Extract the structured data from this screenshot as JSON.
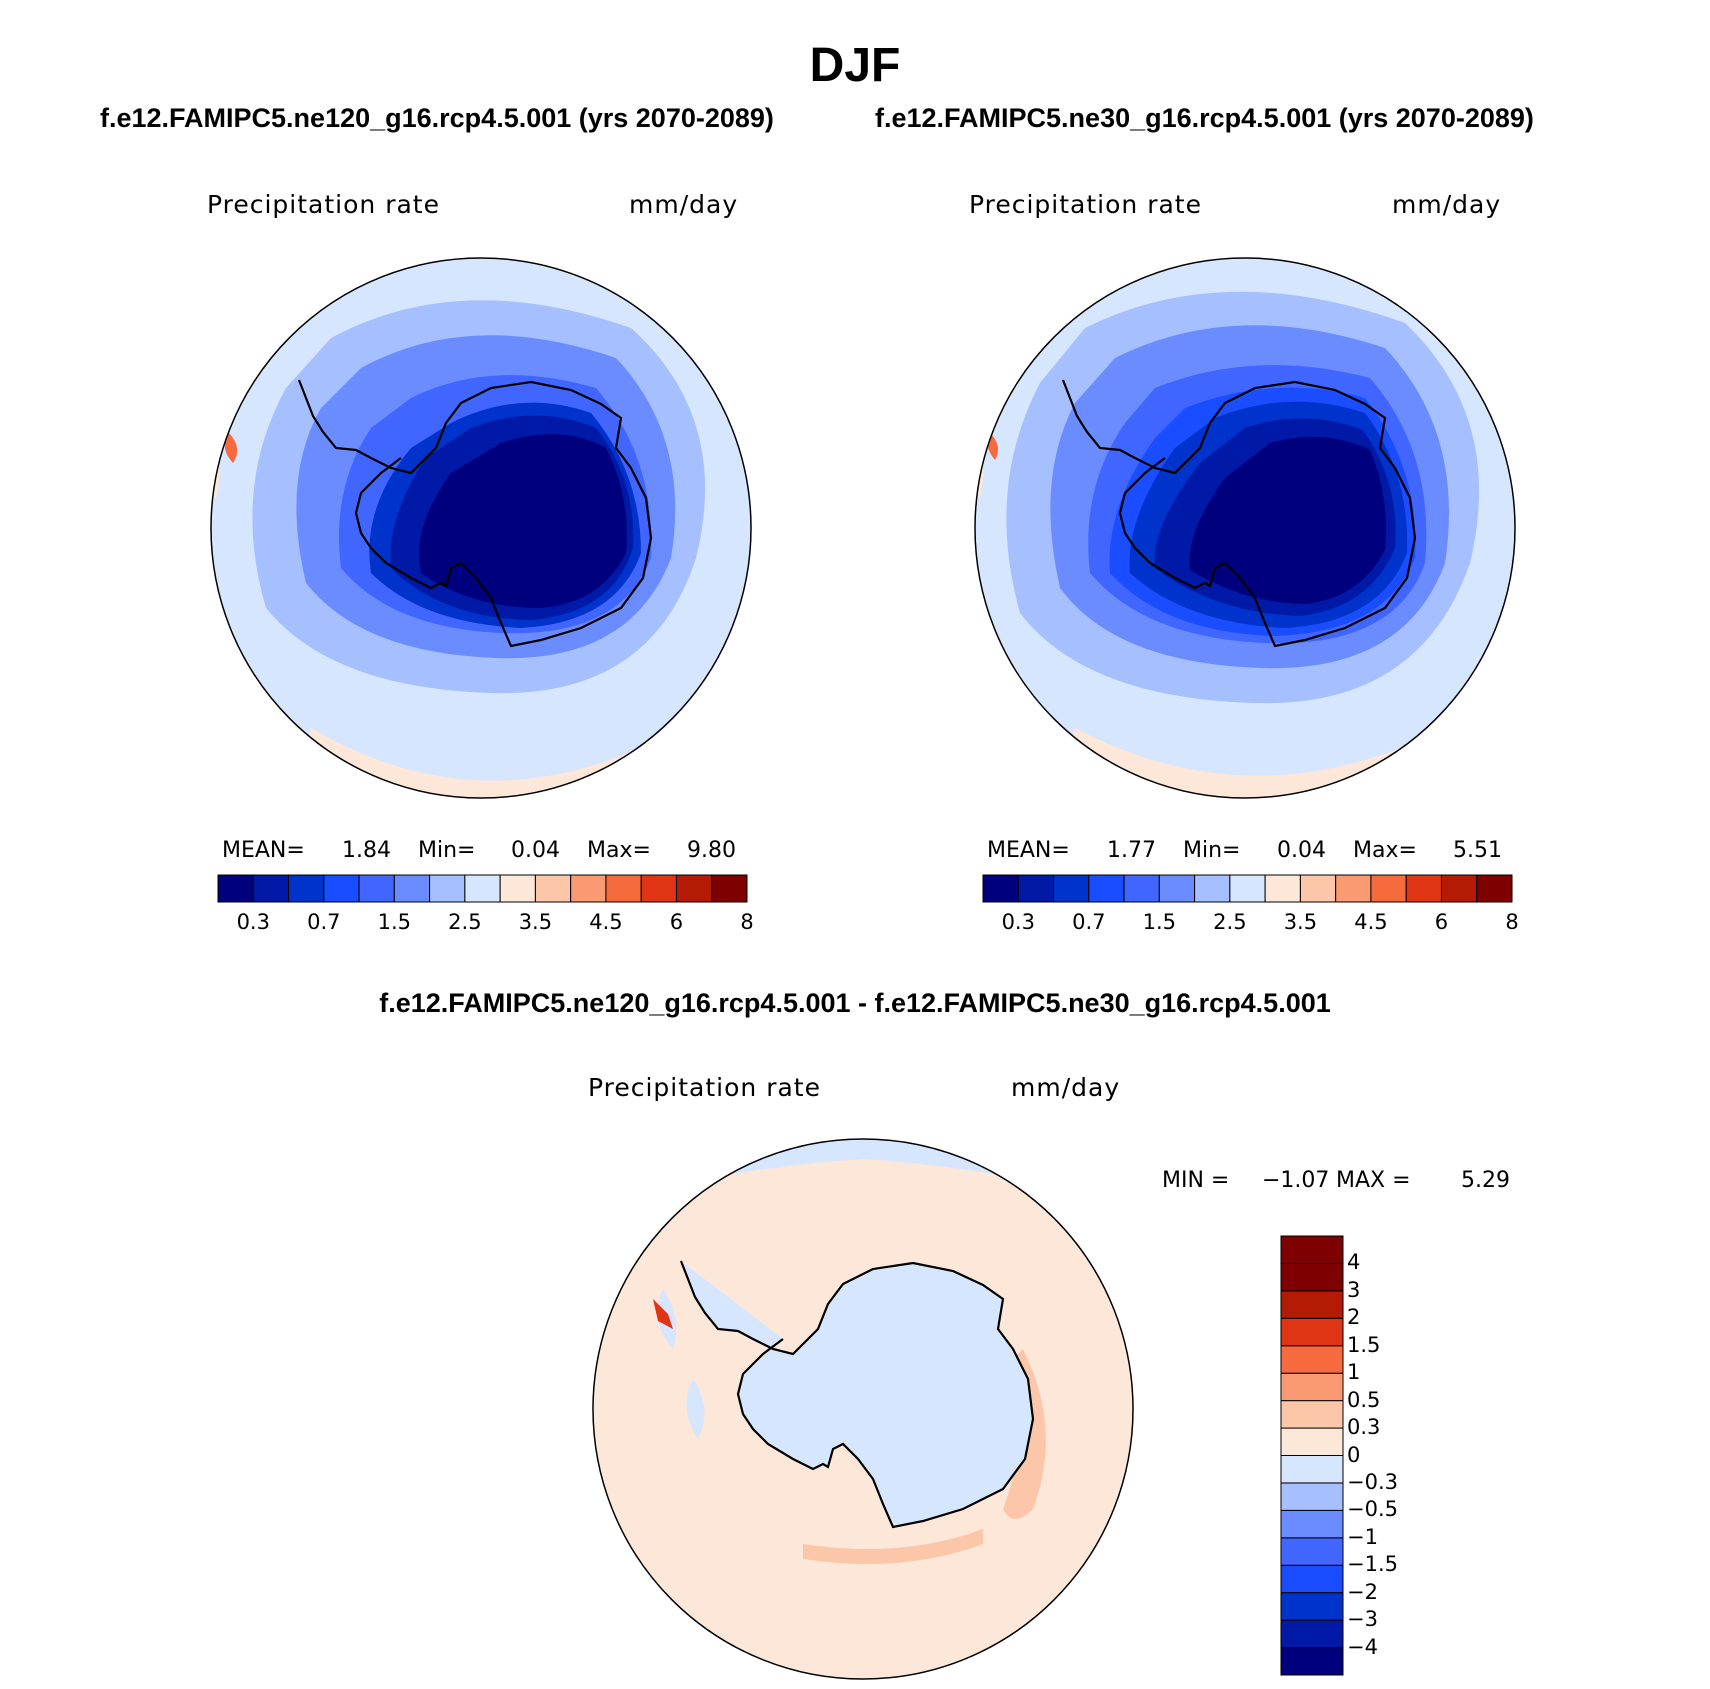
{
  "figure": {
    "season": "DJF",
    "case1": "f.e12.FAMIPC5.ne120_g16.rcp4.5.001 (yrs 2070-2089)",
    "case2": "f.e12.FAMIPC5.ne30_g16.rcp4.5.001 (yrs 2070-2089)",
    "diff_title": "f.e12.FAMIPC5.ne120_g16.rcp4.5.001 - f.e12.FAMIPC5.ne30_g16.rcp4.5.001"
  },
  "panels": [
    {
      "variable": "Precipitation rate",
      "units": "mm/day",
      "mean_label": "MEAN=",
      "mean": "1.84",
      "min_label": "Min=",
      "min": "0.04",
      "max_label": "Max=",
      "max": "9.80"
    },
    {
      "variable": "Precipitation rate",
      "units": "mm/day",
      "mean_label": "MEAN=",
      "mean": "1.77",
      "min_label": "Min=",
      "min": "0.04",
      "max_label": "Max=",
      "max": "5.51"
    },
    {
      "variable": "Precipitation rate",
      "units": "mm/day",
      "min_label": "MIN =",
      "min": "−1.07",
      "max_label": "MAX =",
      "max": "5.29"
    }
  ],
  "colorbar_main": {
    "colors": [
      "#00007f",
      "#0019a6",
      "#0033cc",
      "#1a4dff",
      "#4066ff",
      "#6b8cff",
      "#a6bfff",
      "#d6e6ff",
      "#fde7d8",
      "#fcc6a9",
      "#fa9a73",
      "#f56b3d",
      "#e03514",
      "#b51a05",
      "#7f0000"
    ],
    "tick_labels": [
      "0.3",
      "0.7",
      "1.5",
      "2.5",
      "3.5",
      "4.5",
      "6",
      "8"
    ]
  },
  "colorbar_diff": {
    "colors": [
      "#00007f",
      "#0019a6",
      "#0033cc",
      "#1a4dff",
      "#4066ff",
      "#6b8cff",
      "#a6bfff",
      "#d6e6ff",
      "#fde7d8",
      "#fcc6a9",
      "#fa9a73",
      "#f56b3d",
      "#e03514",
      "#b51a05",
      "#7f0000",
      "#7f0000"
    ],
    "tick_labels": [
      "4",
      "3",
      "2",
      "1.5",
      "1",
      "0.5",
      "0.3",
      "0",
      "−0.3",
      "−0.5",
      "−1",
      "−1.5",
      "−2",
      "−3",
      "−4"
    ]
  }
}
